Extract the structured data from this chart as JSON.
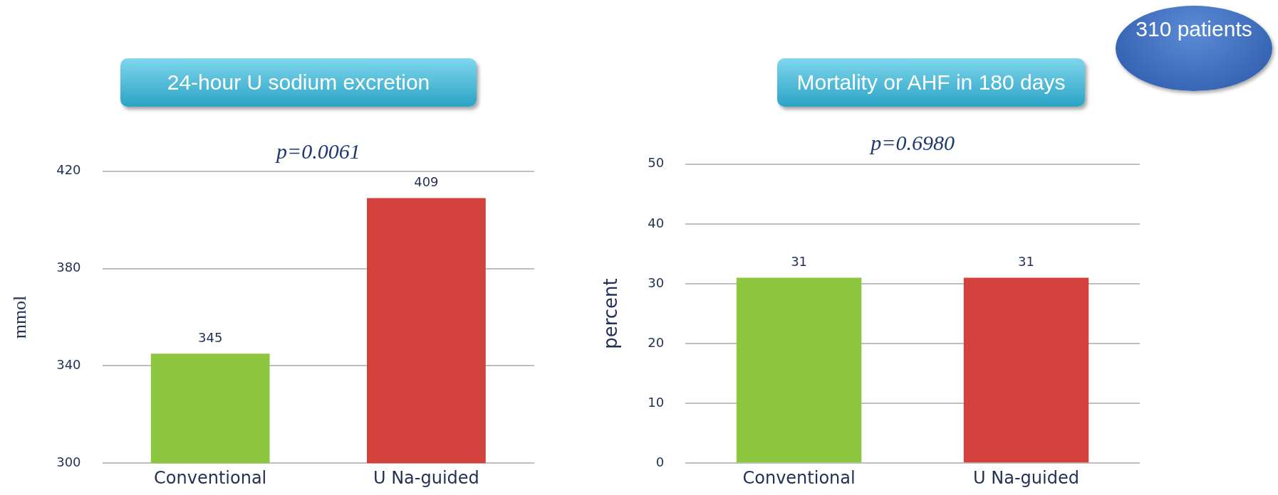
{
  "chart_data": [
    {
      "type": "bar",
      "title": "24-hour  U sodium  excretion",
      "ylabel": "mmol",
      "categories": [
        "Conventional",
        "U Na-guided"
      ],
      "values": [
        345,
        409
      ],
      "colors": [
        "#8dc63f",
        "#d2413b"
      ],
      "ylim": [
        300,
        420
      ],
      "yticks": [
        300,
        340,
        380,
        420
      ],
      "grid": "y",
      "data_labels": true,
      "annotations": [
        "p=0.0061"
      ]
    },
    {
      "type": "bar",
      "title": "Mortality or AHF in 180 days",
      "ylabel": "percent",
      "categories": [
        "Conventional",
        "U Na-guided"
      ],
      "values": [
        31,
        31
      ],
      "colors": [
        "#8dc63f",
        "#d2413b"
      ],
      "ylim": [
        0,
        50
      ],
      "yticks": [
        0,
        10,
        20,
        30,
        40,
        50
      ],
      "grid": "y",
      "data_labels": true,
      "annotations": [
        "p=0.6980",
        "310 patients"
      ]
    }
  ]
}
